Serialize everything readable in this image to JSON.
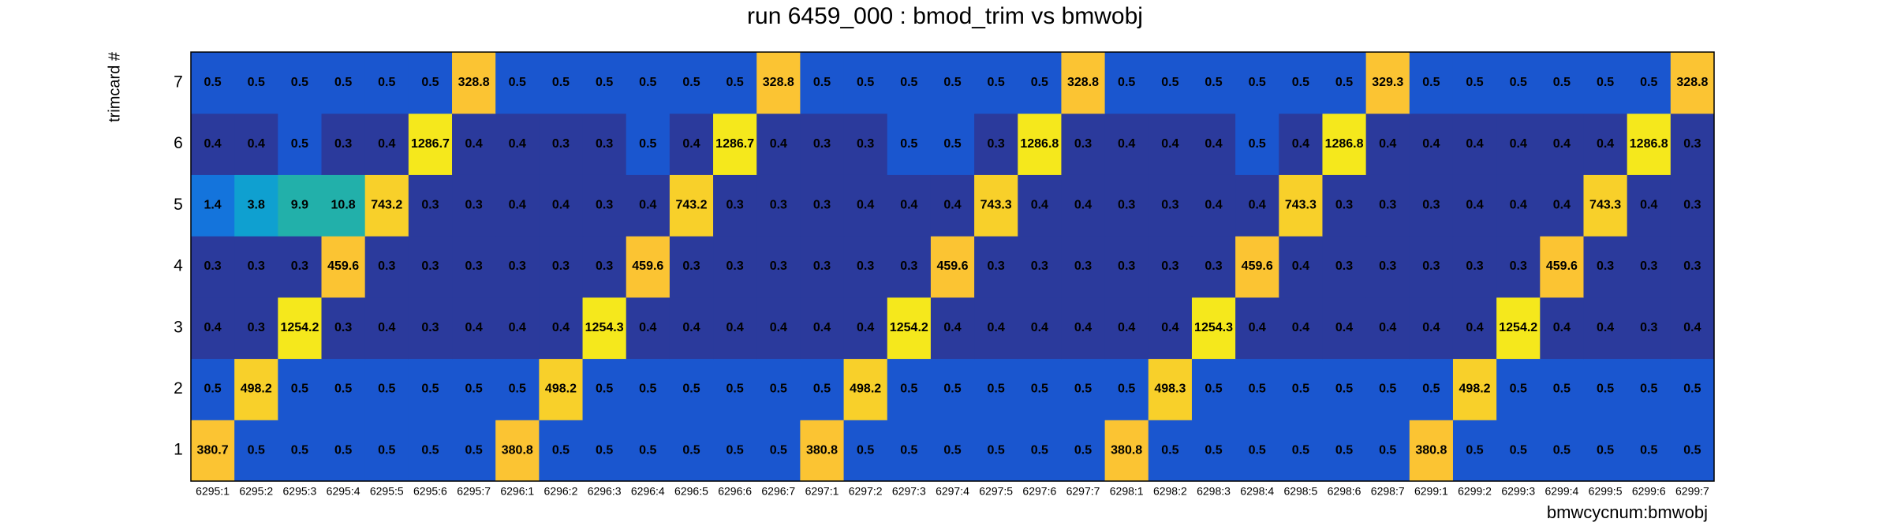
{
  "chart_data": {
    "type": "heatmap",
    "title": "run 6459_000 : bmod_trim vs bmwobj",
    "x_label": "bmwcycnum:bmwobj",
    "y_label": "trimcard #",
    "x_categories": [
      "6295:1",
      "6295:2",
      "6295:3",
      "6295:4",
      "6295:5",
      "6295:6",
      "6295:7",
      "6296:1",
      "6296:2",
      "6296:3",
      "6296:4",
      "6296:5",
      "6296:6",
      "6296:7",
      "6297:1",
      "6297:2",
      "6297:3",
      "6297:4",
      "6297:5",
      "6297:6",
      "6297:7",
      "6298:1",
      "6298:2",
      "6298:3",
      "6298:4",
      "6298:5",
      "6298:6",
      "6298:7",
      "6299:1",
      "6299:2",
      "6299:3",
      "6299:4",
      "6299:5",
      "6299:6",
      "6299:7"
    ],
    "y_categories": [
      1,
      2,
      3,
      4,
      5,
      6,
      7
    ],
    "values": [
      [
        380.7,
        0.5,
        0.5,
        0.5,
        0.5,
        0.5,
        0.5,
        380.8,
        0.5,
        0.5,
        0.5,
        0.5,
        0.5,
        0.5,
        380.8,
        0.5,
        0.5,
        0.5,
        0.5,
        0.5,
        0.5,
        380.8,
        0.5,
        0.5,
        0.5,
        0.5,
        0.5,
        0.5,
        380.8,
        0.5,
        0.5,
        0.5,
        0.5,
        0.5,
        0.5
      ],
      [
        0.5,
        498.2,
        0.5,
        0.5,
        0.5,
        0.5,
        0.5,
        0.5,
        498.2,
        0.5,
        0.5,
        0.5,
        0.5,
        0.5,
        0.5,
        498.2,
        0.5,
        0.5,
        0.5,
        0.5,
        0.5,
        0.5,
        498.3,
        0.5,
        0.5,
        0.5,
        0.5,
        0.5,
        0.5,
        498.2,
        0.5,
        0.5,
        0.5,
        0.5,
        0.5
      ],
      [
        0.4,
        0.3,
        1254.2,
        0.3,
        0.4,
        0.3,
        0.4,
        0.4,
        0.4,
        1254.3,
        0.4,
        0.4,
        0.4,
        0.4,
        0.4,
        0.4,
        1254.2,
        0.4,
        0.4,
        0.4,
        0.4,
        0.4,
        0.4,
        1254.3,
        0.4,
        0.4,
        0.4,
        0.4,
        0.4,
        0.4,
        1254.2,
        0.4,
        0.4,
        0.3,
        0.4
      ],
      [
        0.3,
        0.3,
        0.3,
        459.6,
        0.3,
        0.3,
        0.3,
        0.3,
        0.3,
        0.3,
        459.6,
        0.3,
        0.3,
        0.3,
        0.3,
        0.3,
        0.3,
        459.6,
        0.3,
        0.3,
        0.3,
        0.3,
        0.3,
        0.3,
        459.6,
        0.4,
        0.3,
        0.3,
        0.3,
        0.3,
        0.3,
        459.6,
        0.3,
        0.3,
        0.3
      ],
      [
        1.4,
        3.8,
        9.9,
        10.8,
        743.2,
        0.3,
        0.3,
        0.4,
        0.4,
        0.3,
        0.4,
        743.2,
        0.3,
        0.3,
        0.3,
        0.4,
        0.4,
        0.4,
        743.3,
        0.4,
        0.4,
        0.3,
        0.3,
        0.4,
        0.4,
        743.3,
        0.3,
        0.3,
        0.3,
        0.4,
        0.4,
        0.4,
        743.3,
        0.4,
        0.3
      ],
      [
        0.4,
        0.4,
        0.5,
        0.3,
        0.4,
        1286.7,
        0.4,
        0.4,
        0.3,
        0.3,
        0.5,
        0.4,
        1286.7,
        0.4,
        0.3,
        0.3,
        0.5,
        0.5,
        0.3,
        1286.8,
        0.3,
        0.4,
        0.4,
        0.4,
        0.5,
        0.4,
        1286.8,
        0.4,
        0.4,
        0.4,
        0.4,
        0.4,
        0.4,
        1286.8,
        0.3
      ],
      [
        0.5,
        0.5,
        0.5,
        0.5,
        0.5,
        0.5,
        328.8,
        0.5,
        0.5,
        0.5,
        0.5,
        0.5,
        0.5,
        328.8,
        0.5,
        0.5,
        0.5,
        0.5,
        0.5,
        0.5,
        328.8,
        0.5,
        0.5,
        0.5,
        0.5,
        0.5,
        0.5,
        329.3,
        0.5,
        0.5,
        0.5,
        0.5,
        0.5,
        0.5,
        328.8
      ]
    ],
    "zlog": true,
    "colorscale": [
      "#2b3a9c",
      "#1a56cf",
      "#1468d8",
      "#1474dc",
      "#1090d4",
      "#0fa0d0",
      "#18aab8",
      "#22b0aa",
      "#4cb88c",
      "#7dbd6c",
      "#a6be55",
      "#c8bd44",
      "#e4bb3a",
      "#f6bf36",
      "#fbc433",
      "#f8d02a",
      "#f5e81c"
    ]
  }
}
